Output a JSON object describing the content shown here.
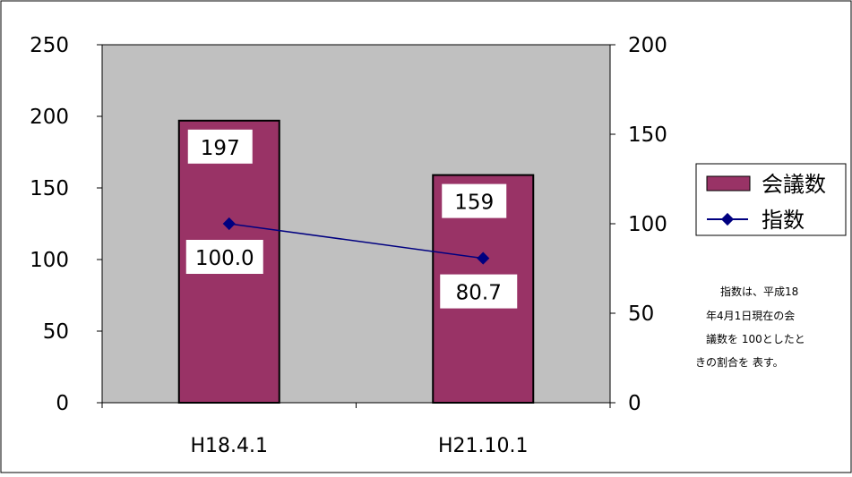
{
  "chart_data": {
    "type": "bar",
    "categories": [
      "H18.4.1",
      "H21.10.1"
    ],
    "series": [
      {
        "name": "会議数",
        "kind": "bar",
        "axis": "left",
        "values": [
          197,
          159
        ],
        "data_labels": [
          "197",
          "159"
        ],
        "color": "#993366"
      },
      {
        "name": "指数",
        "kind": "line",
        "axis": "right",
        "values": [
          100.0,
          80.7
        ],
        "data_labels": [
          "100.0",
          "80.7"
        ],
        "color": "#000080"
      }
    ],
    "y_left": {
      "ylim": [
        0,
        250
      ],
      "ticks": [
        0,
        50,
        100,
        150,
        200,
        250
      ]
    },
    "y_right": {
      "ylim": [
        0,
        200
      ],
      "ticks": [
        0,
        50,
        100,
        150,
        200
      ]
    },
    "plot_background": "#c0c0c0",
    "grid": false,
    "legend_position": "right",
    "annotation": [
      "指数は、平成18",
      "年4月1日現在の会",
      "議数を 100としたと",
      "きの割合を 表す。"
    ]
  }
}
